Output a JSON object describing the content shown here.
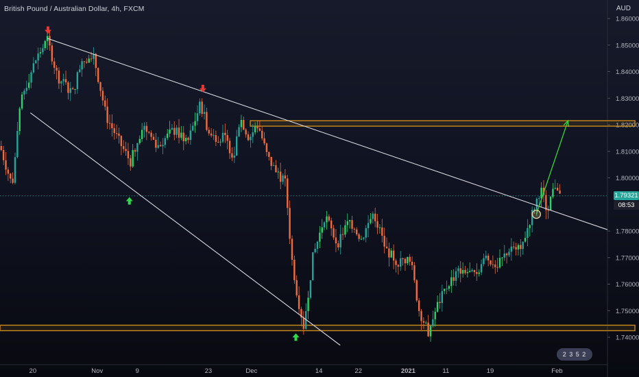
{
  "header": {
    "title": "British Pound / Australian Dollar, 4h, FXCM"
  },
  "axis_currency": "AUD",
  "current_price_label": "1.79321",
  "countdown_label": "08:53",
  "logo_text": "2 3 5 2",
  "colors": {
    "up": "#26a69a",
    "up_bright": "#2bd46a",
    "down": "#ef6c3c",
    "level": "#c98a1e",
    "trendline": "#d8d8e0",
    "target_arrow": "#37d63a",
    "marker_up": "#2fd84a",
    "marker_down": "#e53935",
    "price_badge": "#26a69a",
    "countdown_badge": "#1f1f2b"
  },
  "chart_data": {
    "type": "candlestick",
    "title": "British Pound / Australian Dollar, 4h, FXCM",
    "ylabel": "AUD",
    "ylim": [
      1.735,
      1.862
    ],
    "y_ticks": [
      "1.86000",
      "1.85000",
      "1.84000",
      "1.83000",
      "1.82000",
      "1.81000",
      "1.80000",
      "1.78000",
      "1.77000",
      "1.76000",
      "1.75000",
      "1.74000"
    ],
    "x_ticks": [
      "20",
      "Nov",
      "9",
      "23",
      "Dec",
      "14",
      "22",
      "2021",
      "11",
      "19",
      "Feb"
    ],
    "price_path": [
      [
        0,
        1.812
      ],
      [
        0.02,
        1.797
      ],
      [
        0.035,
        1.83
      ],
      [
        0.06,
        1.845
      ],
      [
        0.078,
        1.852
      ],
      [
        0.095,
        1.838
      ],
      [
        0.12,
        1.832
      ],
      [
        0.135,
        1.845
      ],
      [
        0.155,
        1.845
      ],
      [
        0.175,
        1.823
      ],
      [
        0.2,
        1.812
      ],
      [
        0.215,
        1.806
      ],
      [
        0.235,
        1.82
      ],
      [
        0.26,
        1.812
      ],
      [
        0.285,
        1.818
      ],
      [
        0.31,
        1.814
      ],
      [
        0.33,
        1.828
      ],
      [
        0.345,
        1.816
      ],
      [
        0.37,
        1.815
      ],
      [
        0.385,
        1.808
      ],
      [
        0.395,
        1.823
      ],
      [
        0.41,
        1.815
      ],
      [
        0.425,
        1.82
      ],
      [
        0.44,
        1.808
      ],
      [
        0.455,
        1.802
      ],
      [
        0.47,
        1.798
      ],
      [
        0.48,
        1.77
      ],
      [
        0.49,
        1.755
      ],
      [
        0.5,
        1.744
      ],
      [
        0.515,
        1.77
      ],
      [
        0.535,
        1.786
      ],
      [
        0.555,
        1.775
      ],
      [
        0.575,
        1.784
      ],
      [
        0.595,
        1.777
      ],
      [
        0.615,
        1.787
      ],
      [
        0.635,
        1.773
      ],
      [
        0.655,
        1.768
      ],
      [
        0.675,
        1.77
      ],
      [
        0.69,
        1.75
      ],
      [
        0.705,
        1.742
      ],
      [
        0.72,
        1.752
      ],
      [
        0.74,
        1.761
      ],
      [
        0.76,
        1.766
      ],
      [
        0.78,
        1.763
      ],
      [
        0.8,
        1.77
      ],
      [
        0.82,
        1.767
      ],
      [
        0.84,
        1.774
      ],
      [
        0.86,
        1.775
      ],
      [
        0.875,
        1.786
      ],
      [
        0.89,
        1.796
      ],
      [
        0.9,
        1.788
      ],
      [
        0.915,
        1.798
      ],
      [
        0.925,
        1.793
      ]
    ],
    "horizontal_levels": [
      {
        "name": "resistance",
        "value": 1.8205,
        "start_x": "Dec"
      },
      {
        "name": "support",
        "value": 1.7435,
        "start_x": "start"
      }
    ],
    "trendlines": [
      {
        "name": "upper",
        "from": [
          0.078,
          1.8525
        ],
        "to": [
          1.0,
          1.7805
        ]
      },
      {
        "name": "lower",
        "from": [
          0.05,
          1.8245
        ],
        "to": [
          0.56,
          1.737
        ]
      }
    ],
    "markers": [
      {
        "type": "down",
        "x": 0.079,
        "value": 1.8555
      },
      {
        "type": "down",
        "x": 0.334,
        "value": 1.8335
      },
      {
        "type": "up",
        "x": 0.213,
        "value": 1.7915
      },
      {
        "type": "up",
        "x": 0.487,
        "value": 1.7402
      }
    ],
    "projection_arrow": {
      "from": [
        0.883,
        1.7863
      ],
      "to": [
        0.935,
        1.8215
      ]
    },
    "current_price": 1.79321
  }
}
